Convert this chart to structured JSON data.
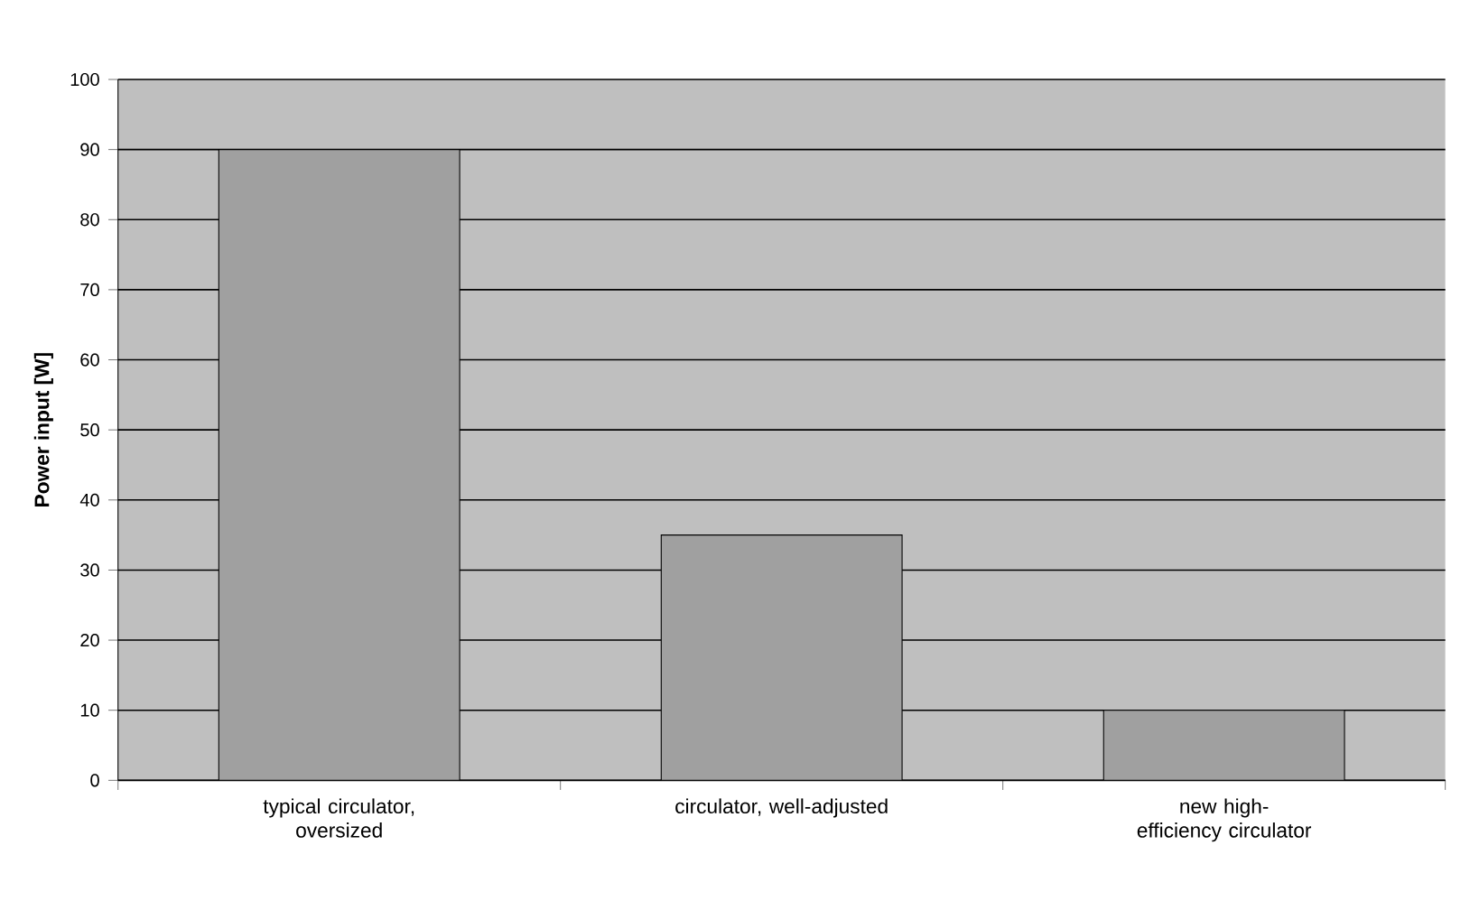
{
  "chart_data": {
    "type": "bar",
    "ylabel": "Power input [W]",
    "categories": [
      "typical circulator, oversized",
      "circulator, well-adjusted",
      "new high-efficiency circulator"
    ],
    "values": [
      90,
      35,
      10
    ],
    "color": "#a0a0a0",
    "ylim": [
      0,
      100
    ],
    "yticks": [
      0,
      10,
      20,
      30,
      40,
      50,
      60,
      70,
      80,
      90,
      100
    ],
    "grid": "y"
  }
}
